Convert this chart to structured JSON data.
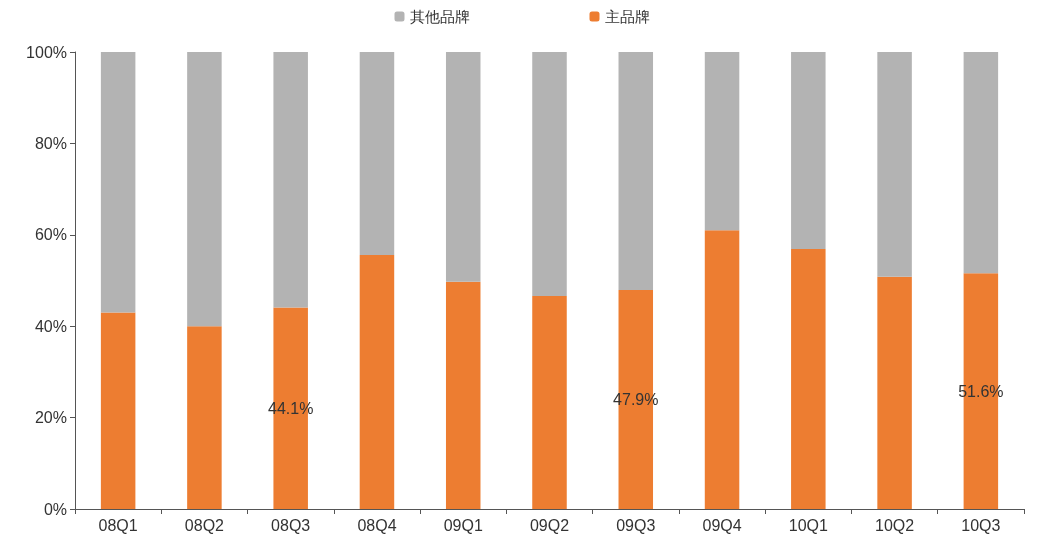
{
  "chart_data": {
    "type": "bar",
    "stacked": true,
    "categories": [
      "08Q1",
      "08Q2",
      "08Q3",
      "08Q4",
      "09Q1",
      "09Q2",
      "09Q3",
      "09Q4",
      "10Q1",
      "10Q2",
      "10Q3"
    ],
    "series": [
      {
        "name": "主品牌",
        "color": "#ed7d31",
        "values": [
          43.0,
          40.0,
          44.1,
          55.6,
          49.7,
          46.6,
          47.9,
          61.0,
          56.9,
          50.8,
          51.6
        ],
        "value_labels": [
          null,
          null,
          "44.1%",
          null,
          null,
          null,
          "47.9%",
          null,
          null,
          null,
          "51.6%"
        ]
      },
      {
        "name": "其他品牌",
        "color": "#b3b3b3",
        "values": [
          57.0,
          60.0,
          55.9,
          44.4,
          50.3,
          53.4,
          52.1,
          39.0,
          43.1,
          49.2,
          48.4
        ]
      }
    ],
    "ylim": [
      0,
      100
    ],
    "yticks": [
      {
        "value": 0,
        "label": "0%"
      },
      {
        "value": 20,
        "label": "20%"
      },
      {
        "value": 40,
        "label": "40%"
      },
      {
        "value": 60,
        "label": "60%"
      },
      {
        "value": 80,
        "label": "80%"
      },
      {
        "value": 100,
        "label": "100%"
      }
    ],
    "grid": false,
    "legend": "top"
  }
}
